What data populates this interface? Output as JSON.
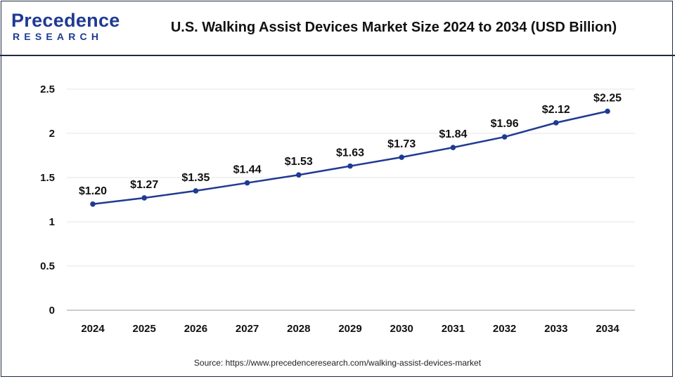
{
  "header": {
    "logo_top": "Precedence",
    "logo_bottom": "RESEARCH",
    "title": "U.S. Walking Assist Devices Market Size 2024 to 2034 (USD Billion)"
  },
  "source": "Source: https://www.precedenceresearch.com/walking-assist-devices-market",
  "colors": {
    "line": "#1f3a93",
    "marker": "#1f3a93",
    "brand": "#1f3a93",
    "grid": "#e6e6e6"
  },
  "chart_data": {
    "type": "line",
    "title": "U.S. Walking Assist Devices Market Size 2024 to 2034 (USD Billion)",
    "xlabel": "",
    "ylabel": "",
    "categories": [
      "2024",
      "2025",
      "2026",
      "2027",
      "2028",
      "2029",
      "2030",
      "2031",
      "2032",
      "2033",
      "2034"
    ],
    "values": [
      1.2,
      1.27,
      1.35,
      1.44,
      1.53,
      1.63,
      1.73,
      1.84,
      1.96,
      2.12,
      2.25
    ],
    "data_labels": [
      "$1.20",
      "$1.27",
      "$1.35",
      "$1.44",
      "$1.53",
      "$1.63",
      "$1.73",
      "$1.84",
      "$1.96",
      "$2.12",
      "$2.25"
    ],
    "ylim": [
      0,
      2.5
    ],
    "yticks": [
      "0",
      "0.5",
      "1",
      "1.5",
      "2",
      "2.5"
    ],
    "ytick_values": [
      0,
      0.5,
      1,
      1.5,
      2,
      2.5
    ],
    "grid": true,
    "legend": "none"
  }
}
